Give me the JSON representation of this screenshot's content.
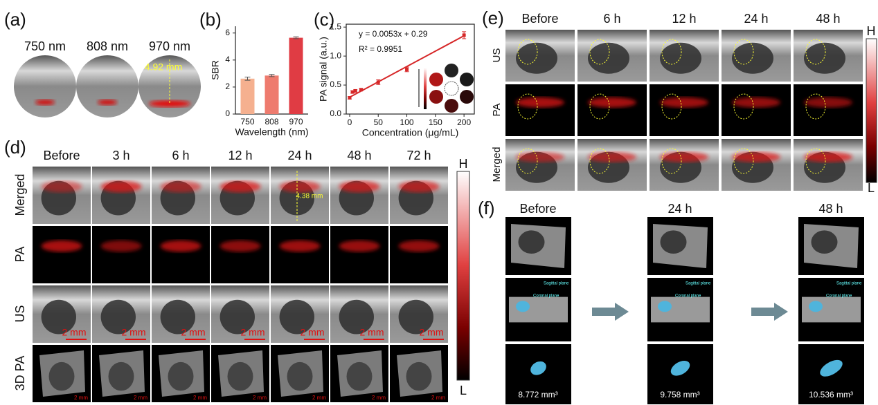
{
  "panel_labels": [
    "(a)",
    "(b)",
    "(c)",
    "(d)",
    "(e)",
    "(f)"
  ],
  "panel_a": {
    "headers": [
      "750 nm",
      "808 nm",
      "970 nm"
    ],
    "annotation": "4.92 mm"
  },
  "chart_data": [
    {
      "type": "bar",
      "categories": [
        "750",
        "808",
        "970"
      ],
      "values": [
        2.62,
        2.85,
        5.65
      ],
      "errors": [
        0.12,
        0.08,
        0.07
      ],
      "colors": [
        "#f5b08f",
        "#ee7b6e",
        "#e03c44"
      ],
      "xlabel": "Wavelength (nm)",
      "ylabel": "SBR",
      "ylim": [
        0,
        6.5
      ],
      "yticks": [
        0,
        2,
        4,
        6
      ]
    },
    {
      "type": "scatter",
      "x": [
        0,
        5,
        10,
        20,
        50,
        100,
        200
      ],
      "values": [
        0.28,
        0.38,
        0.4,
        0.42,
        0.55,
        0.77,
        1.36
      ],
      "errors": [
        0.02,
        0.02,
        0.02,
        0.02,
        0.04,
        0.04,
        0.06
      ],
      "color": "#d62728",
      "xlabel": "Concentration (μg/mL)",
      "ylabel": "PA signal (a.u.)",
      "xlim": [
        -6,
        218
      ],
      "xticks": [
        0,
        50,
        100,
        150,
        200
      ],
      "ylim": [
        0,
        1.55
      ],
      "yticks": [
        {
          "value": 0,
          "label": "0.0"
        },
        0.5,
        {
          "value": 1,
          "label": "1.0"
        },
        1.5
      ],
      "fit": {
        "label": "y = 0.0053x + 0.29",
        "slope": 0.0053,
        "intercept": 0.29
      },
      "r2_label": "R² = 0.9951"
    }
  ],
  "panel_d": {
    "columns": [
      "Before",
      "3 h",
      "6 h",
      "12 h",
      "24 h",
      "48 h",
      "72 h"
    ],
    "rows": [
      "Merged",
      "PA",
      "US",
      "3D PA"
    ],
    "annotation": "4.38 mm",
    "scale_bar": "2 mm",
    "colorbar": {
      "high": "H",
      "low": "L"
    }
  },
  "panel_e": {
    "columns": [
      "Before",
      "6 h",
      "12 h",
      "24 h",
      "48 h"
    ],
    "rows": [
      "US",
      "PA",
      "Merged"
    ],
    "colorbar": {
      "high": "H",
      "low": "L"
    }
  },
  "panel_f": {
    "columns": [
      "Before",
      "24 h",
      "48 h"
    ],
    "volumes": [
      "8.772 mm³",
      "9.758 mm³",
      "10.536 mm³"
    ],
    "plane_labels": [
      "Sagittal plane",
      "Coronal plane"
    ]
  }
}
